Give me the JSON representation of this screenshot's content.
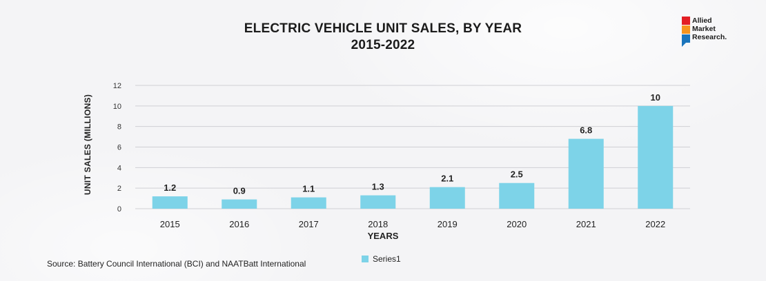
{
  "chart_data": {
    "type": "bar",
    "title_line1": "ELECTRIC VEHICLE UNIT SALES, BY YEAR",
    "title_line2": "2015-2022",
    "xlabel": "YEARS",
    "ylabel": "UNIT SALES (MILLIONS)",
    "categories": [
      "2015",
      "2016",
      "2017",
      "2018",
      "2019",
      "2020",
      "2021",
      "2022"
    ],
    "series": [
      {
        "name": "Series1",
        "values": [
          1.2,
          0.9,
          1.1,
          1.3,
          2.1,
          2.5,
          6.8,
          10
        ],
        "color": "#7dd3e8"
      }
    ],
    "ylim": [
      0,
      12
    ],
    "yticks": [
      0,
      2,
      4,
      6,
      8,
      10,
      12
    ],
    "grid": true,
    "legend": "bottom",
    "data_labels": true
  },
  "source": "Source: Battery Council International (BCI) and NAATBatt International",
  "logo": {
    "text": "Allied\nMarket\nResearch.",
    "colors": [
      "#e31e24",
      "#f7941d",
      "#1b75bc"
    ]
  }
}
